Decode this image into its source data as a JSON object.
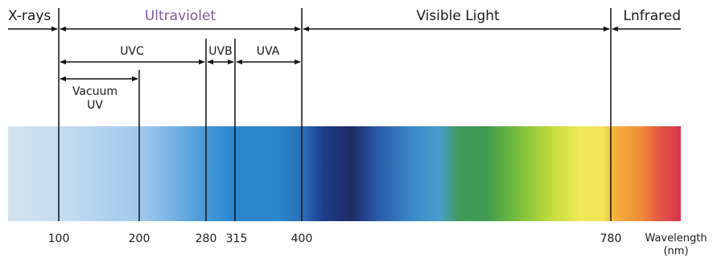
{
  "regions": {
    "xrays": "X-rays",
    "ultraviolet": "Ultraviolet",
    "visible": "Visible Light",
    "infrared": "Lnfrared"
  },
  "uv_bands": {
    "uvc": "UVC",
    "uvb": "UVB",
    "uva": "UVA",
    "vacuum_line1": "Vacuum",
    "vacuum_line2": "UV"
  },
  "ticks": [
    "100",
    "200",
    "280",
    "315",
    "400",
    "780"
  ],
  "axis": {
    "label_line1": "Wavelength",
    "label_line2": "(nm)"
  },
  "colors": {
    "ultraviolet_label": "#7a5aa0",
    "text": "#1a1a1a",
    "lines": "#111111"
  }
}
